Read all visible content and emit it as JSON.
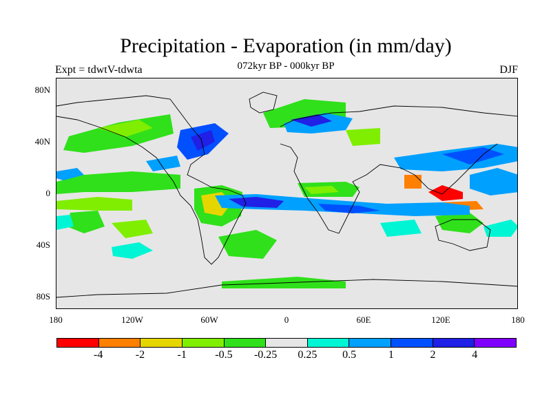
{
  "title": "Precipitation - Evaporation (in mm/day)",
  "subtitle": "072kyr BP - 000kyr BP",
  "left_label": "Expt = tdwtV-tdwta",
  "right_label": "DJF",
  "lat_labels": [
    "80N",
    "40N",
    "0",
    "40S",
    "80S"
  ],
  "lon_labels": [
    "180",
    "120W",
    "60W",
    "0",
    "60E",
    "120E",
    "180"
  ],
  "colorbar": {
    "colors": [
      "#ff0000",
      "#ff7f00",
      "#e6d600",
      "#80ee00",
      "#2fe01a",
      "#e6e6e6",
      "#00f5d4",
      "#00a0ff",
      "#0050ff",
      "#2020e6",
      "#7f00ff"
    ],
    "labels": [
      "-4",
      "-2",
      "-1",
      "-0.5",
      "-0.25",
      "0.25",
      "0.5",
      "1",
      "2",
      "4"
    ]
  },
  "icons": {
    "coastlines": "world-coastline-outline"
  }
}
